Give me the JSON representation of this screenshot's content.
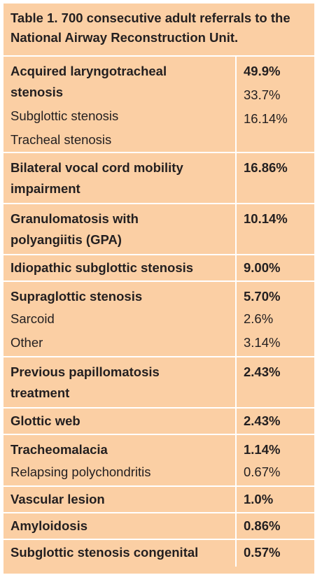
{
  "title": "Table 1. 700 consecutive adult referrals to the National Airway Reconstruction Unit.",
  "rows": [
    {
      "label": "Acquired laryngotracheal stenosis",
      "value": "49.9%",
      "subs": [
        {
          "label": "Subglottic stenosis",
          "value": "33.7%"
        },
        {
          "label": "Tracheal stenosis",
          "value": "16.14%"
        }
      ]
    },
    {
      "label": "Bilateral vocal cord mobility impairment",
      "value": "16.86%",
      "subs": []
    },
    {
      "label": "Granulomatosis with polyangiitis (GPA)",
      "value": "10.14%",
      "subs": []
    },
    {
      "label": "Idiopathic subglottic stenosis",
      "value": "9.00%",
      "subs": []
    },
    {
      "label": "Supraglottic stenosis",
      "value": "5.70%",
      "subs": [
        {
          "label": "Sarcoid",
          "value": "2.6%"
        },
        {
          "label": "Other",
          "value": "3.14%"
        }
      ]
    },
    {
      "label": "Previous papillomatosis treatment",
      "value": "2.43%",
      "subs": []
    },
    {
      "label": "Glottic web",
      "value": "2.43%",
      "subs": []
    },
    {
      "label": "Tracheomalacia",
      "value": "1.14%",
      "subs": [
        {
          "label": "Relapsing polychondritis",
          "value": "0.67%"
        }
      ]
    },
    {
      "label": "Vascular lesion",
      "value": "1.0%",
      "subs": []
    },
    {
      "label": "Amyloidosis",
      "value": "0.86%",
      "subs": []
    },
    {
      "label": "Subglottic stenosis congenital",
      "value": "0.57%",
      "subs": []
    }
  ]
}
